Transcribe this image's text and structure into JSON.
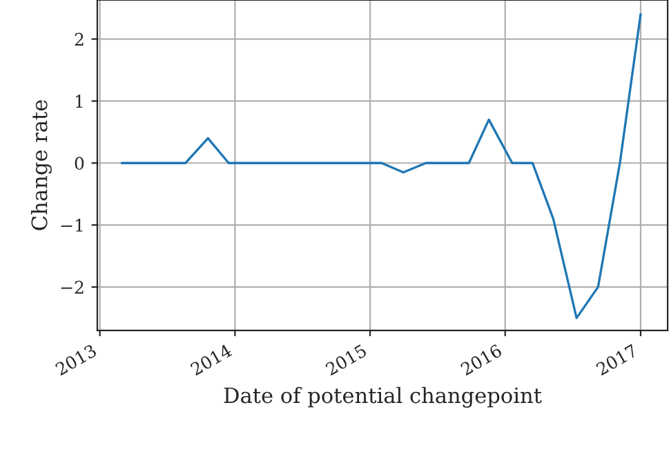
{
  "chart_data": {
    "type": "line",
    "xlabel": "Date of potential changepoint",
    "ylabel": "Change rate",
    "x": [
      "2013-03-01",
      "2013-08-20",
      "2013-10-20",
      "2013-12-15",
      "2015-02-01",
      "2015-04-01",
      "2015-06-01",
      "2015-09-25",
      "2015-11-18",
      "2016-01-20",
      "2016-03-15",
      "2016-05-10",
      "2016-07-12",
      "2016-09-08",
      "2016-11-06",
      "2017-01-01"
    ],
    "series": [
      {
        "color": "#1f77b4",
        "values": [
          0,
          0,
          0.4,
          0,
          0,
          -0.15,
          0,
          0,
          0.7,
          0,
          0,
          -0.9,
          -2.5,
          -2.0,
          0,
          2.4
        ]
      }
    ],
    "xlim": [
      "2012-12-25",
      "2017-03-15"
    ],
    "xticks": [
      "2013",
      "2014",
      "2015",
      "2016",
      "2017"
    ],
    "ylim": [
      -2.7,
      2.63
    ],
    "yticks": [
      -2,
      -1,
      0,
      1,
      2
    ],
    "grid": true,
    "marker": "none",
    "line_style": "solid"
  }
}
